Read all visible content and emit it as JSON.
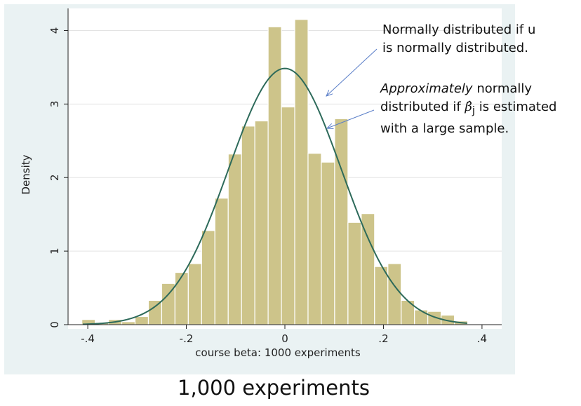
{
  "caption": "1,000 experiments",
  "annotations": {
    "normal_line1": "Normally distributed if u",
    "normal_line2": "is normally distributed.",
    "approx_italic": "Approximately",
    "approx_rest1": " normally",
    "approx_line2_pre": "distributed if ",
    "approx_beta_symbol": "β̂",
    "approx_beta_sub": "j",
    "approx_line2_post": " is estimated",
    "approx_line3": "with a large sample."
  },
  "colors": {
    "bar_fill": "#cdc48a",
    "bar_stroke": "#ffffff",
    "curve": "#2d6a5a",
    "arrow": "#5a7ec8",
    "gridline": "#e3e3e3",
    "plot_bg": "#ffffff",
    "frame_bg": "#eaf2f3"
  },
  "chart_data": {
    "type": "bar",
    "xlabel": "course beta: 1000 experiments",
    "ylabel": "Density",
    "xlim": [
      -0.44,
      0.44
    ],
    "ylim": [
      0,
      4.3
    ],
    "xticks": [
      -0.4,
      -0.2,
      0,
      0.2,
      0.4
    ],
    "xtick_labels": [
      "-.4",
      "-.2",
      "0",
      ".2",
      ".4"
    ],
    "yticks": [
      0,
      1,
      2,
      3,
      4
    ],
    "ytick_labels": [
      "0",
      "1",
      "2",
      "3",
      "4"
    ],
    "grid": "horizontal",
    "bin_width": 0.027,
    "bins": [
      {
        "left": -0.412,
        "density": 0.07
      },
      {
        "left": -0.385,
        "density": 0.03
      },
      {
        "left": -0.358,
        "density": 0.07
      },
      {
        "left": -0.331,
        "density": 0.04
      },
      {
        "left": -0.304,
        "density": 0.11
      },
      {
        "left": -0.277,
        "density": 0.33
      },
      {
        "left": -0.25,
        "density": 0.56
      },
      {
        "left": -0.223,
        "density": 0.71
      },
      {
        "left": -0.196,
        "density": 0.83
      },
      {
        "left": -0.169,
        "density": 1.28
      },
      {
        "left": -0.142,
        "density": 1.72
      },
      {
        "left": -0.115,
        "density": 2.32
      },
      {
        "left": -0.088,
        "density": 2.7
      },
      {
        "left": -0.061,
        "density": 2.77
      },
      {
        "left": -0.034,
        "density": 4.05
      },
      {
        "left": -0.007,
        "density": 2.96
      },
      {
        "left": 0.02,
        "density": 4.15
      },
      {
        "left": 0.047,
        "density": 2.33
      },
      {
        "left": 0.074,
        "density": 2.21
      },
      {
        "left": 0.101,
        "density": 2.8
      },
      {
        "left": 0.128,
        "density": 1.39
      },
      {
        "left": 0.155,
        "density": 1.51
      },
      {
        "left": 0.182,
        "density": 0.79
      },
      {
        "left": 0.209,
        "density": 0.83
      },
      {
        "left": 0.236,
        "density": 0.33
      },
      {
        "left": 0.263,
        "density": 0.2
      },
      {
        "left": 0.29,
        "density": 0.18
      },
      {
        "left": 0.317,
        "density": 0.13
      },
      {
        "left": 0.344,
        "density": 0.05
      }
    ],
    "curve": {
      "type": "normal",
      "mean": 0,
      "sd": 0.1145,
      "x_range": [
        -0.41,
        0.37
      ]
    }
  }
}
